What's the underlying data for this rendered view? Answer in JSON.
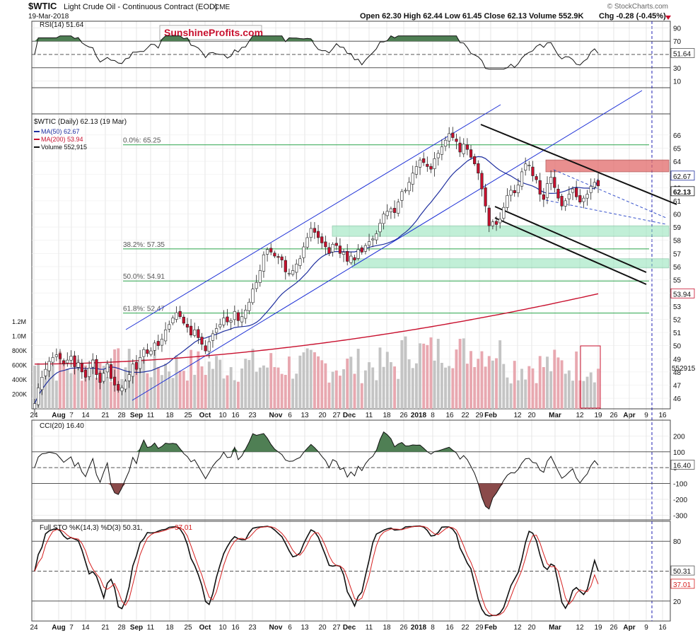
{
  "header": {
    "symbol": "$WTIC",
    "name": "Light Crude Oil - Continuous Contract (EOD)",
    "exchange": "CME",
    "date": "19-Mar-2018",
    "ohlc": "Open 62.30  High 62.44  Low 61.45  Close 62.13  Volume 552.9K",
    "chg": "Chg -0.28 (-0.45%)",
    "watermark": "© StockCharts.com"
  },
  "logo": {
    "text": "SunshineProfits.com"
  },
  "colors": {
    "up": "#ffffff",
    "down": "#c8102e",
    "ma50": "#1f2f9f",
    "ma200": "#c8102e",
    "channel": "#1c2fd6",
    "fib": "#2aa44a",
    "zone_green": "#8fe3b8",
    "zone_red": "#e26a6a",
    "vol_up": "#c4c4c4",
    "vol_down": "#e8a8b0",
    "osc_fill": "#4f7f54",
    "osc_fill_neg": "#8a4a4a"
  },
  "x_axis": {
    "labels": [
      "24",
      "Aug",
      "7",
      "14",
      "21",
      "28",
      "Sep",
      "11",
      "18",
      "25",
      "Oct",
      "10",
      "16",
      "23",
      "Nov",
      "6",
      "13",
      "20",
      "27",
      "Dec",
      "11",
      "18",
      "26",
      "2018",
      "8",
      "16",
      "22",
      "29",
      "Feb",
      "12",
      "20",
      "Mar",
      "12",
      "19",
      "26",
      "Apr",
      "9",
      "16"
    ]
  },
  "chart_data": [
    {
      "type": "line",
      "title": "RSI(14) 51.64",
      "series": [
        {
          "name": "RSI(14)",
          "last": 51.64
        }
      ],
      "y_ticks": [
        90,
        70,
        50,
        30,
        10
      ],
      "ylim": [
        0,
        100
      ],
      "levels": [
        70,
        30
      ],
      "value_label": "51.64"
    },
    {
      "type": "candlestick",
      "title": "$WTIC (Daily) 62.13 (19 Mar)",
      "legend": [
        "MA(50) 62.67",
        "MA(200) 53.94",
        "Volume 552,915"
      ],
      "y_ticks": [
        66,
        65,
        64,
        63,
        62,
        61,
        60,
        59,
        58,
        57,
        56,
        55,
        54,
        53,
        52,
        51,
        50,
        49,
        48,
        47,
        46
      ],
      "ylim": [
        45.2,
        67.6
      ],
      "closes": [
        45.6,
        46.8,
        47.6,
        48.2,
        48.8,
        49.1,
        49.3,
        49.0,
        48.6,
        48.9,
        49.2,
        48.4,
        48.7,
        48.0,
        47.6,
        48.3,
        48.9,
        47.8,
        47.2,
        47.9,
        48.6,
        47.5,
        47.0,
        46.6,
        46.8,
        47.3,
        47.8,
        48.6,
        48.2,
        49.1,
        49.7,
        49.4,
        49.6,
        50.2,
        50.0,
        50.5,
        51.2,
        51.6,
        52.1,
        52.5,
        52.2,
        51.7,
        51.4,
        50.8,
        51.2,
        50.6,
        50.1,
        49.6,
        50.3,
        50.9,
        51.3,
        51.6,
        52.1,
        51.8,
        51.9,
        52.6,
        51.9,
        52.2,
        52.7,
        53.3,
        54.3,
        54.8,
        55.7,
        56.9,
        57.3,
        57.1,
        56.8,
        56.7,
        56.5,
        55.6,
        55.5,
        55.7,
        56.2,
        56.6,
        57.5,
        58.2,
        58.9,
        58.6,
        58.2,
        57.8,
        57.5,
        57.0,
        57.7,
        57.6,
        57.0,
        57.1,
        56.4,
        56.8,
        56.5,
        57.3,
        57.1,
        57.6,
        57.9,
        58.1,
        58.5,
        59.3,
        60.0,
        60.2,
        60.4,
        60.1,
        60.9,
        61.7,
        61.8,
        62.4,
        63.1,
        63.6,
        64.1,
        63.9,
        63.6,
        63.4,
        64.2,
        64.6,
        65.1,
        65.6,
        66.1,
        65.8,
        65.5,
        64.7,
        65.3,
        64.9,
        64.3,
        63.8,
        63.1,
        61.9,
        60.6,
        59.1,
        59.4,
        59.2,
        59.6,
        60.5,
        61.4,
        61.8,
        61.6,
        62.2,
        63.2,
        63.8,
        63.7,
        62.9,
        62.6,
        61.5,
        61.1,
        62.3,
        62.8,
        62.0,
        61.2,
        60.6,
        61.0,
        61.5,
        61.9,
        61.3,
        60.9,
        61.2,
        61.5,
        62.1,
        62.4,
        62.13
      ],
      "ma50": {
        "name": "MA(50)",
        "last": 62.67
      },
      "ma200": {
        "name": "MA(200)",
        "last": 53.94
      },
      "volume": {
        "name": "Volume",
        "last": 552915,
        "last_label": "552915",
        "y_ticks": [
          "1.2M",
          "1.0M",
          "800K",
          "600K",
          "400K",
          "200K"
        ]
      },
      "fib_levels": [
        {
          "label": "0.0%: 65.25",
          "value": 65.25
        },
        {
          "label": "38.2%: 57.35",
          "value": 57.35
        },
        {
          "label": "50.0%: 54.91",
          "value": 54.91
        },
        {
          "label": "61.8%: 52.47",
          "value": 52.47
        }
      ],
      "zones": [
        {
          "from": 63.2,
          "to": 64.1,
          "color": "red"
        },
        {
          "from": 58.3,
          "to": 59.1,
          "color": "green"
        },
        {
          "from": 55.9,
          "to": 56.6,
          "color": "green"
        }
      ],
      "price_flags": {
        "ma50": "62.67",
        "close": "62.13",
        "ma200": "53.94"
      },
      "right_labels": [
        "59",
        "58"
      ]
    },
    {
      "type": "line",
      "title": "CCI(20) 16.40",
      "series": [
        {
          "name": "CCI(20)",
          "last": 16.4
        }
      ],
      "y_ticks": [
        "200",
        "100",
        "0",
        "-100",
        "-200",
        "-300"
      ],
      "ylim": [
        -330,
        300
      ],
      "levels": [
        100,
        -100
      ],
      "value_label": "16.40"
    },
    {
      "type": "line",
      "title": "Full STO %K(14,3) %D(3) 50.31, 37.01",
      "title_k": "Full STO %K(14,3) %D(3) 50.31,",
      "title_d": " 37.01",
      "series": [
        {
          "name": "%K",
          "last": 50.31
        },
        {
          "name": "%D",
          "last": 37.01
        }
      ],
      "y_ticks": [
        "80",
        "50",
        "20"
      ],
      "ylim": [
        0,
        100
      ],
      "levels": [
        80,
        20
      ],
      "value_labels": [
        "50.31",
        "37.01"
      ]
    }
  ]
}
